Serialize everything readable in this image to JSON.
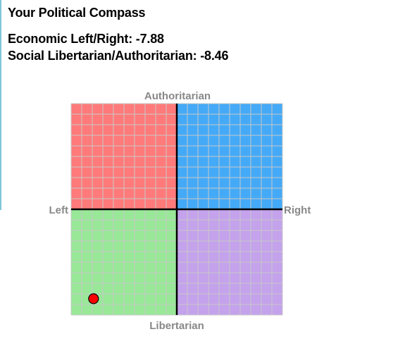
{
  "page": {
    "title": "Your Political Compass",
    "economic_line": "Economic Left/Right: -7.88",
    "social_line": "Social Libertarian/Authoritarian: -8.46"
  },
  "chart_data": {
    "type": "scatter",
    "title": "",
    "axes": {
      "top": "Authoritarian",
      "bottom": "Libertarian",
      "left": "Left",
      "right": "Right"
    },
    "xlim": [
      -10,
      10
    ],
    "ylim": [
      -10,
      10
    ],
    "grid": true,
    "grid_step": 1,
    "quadrant_colors": {
      "authoritarian_left": "#ff7a7a",
      "authoritarian_right": "#44aaf7",
      "libertarian_left": "#98e898",
      "libertarian_right": "#c4a2ec"
    },
    "grid_color": "#c8c8c8",
    "marker_color": "#ff0000",
    "points": [
      {
        "x": -7.88,
        "y": -8.46
      }
    ]
  }
}
